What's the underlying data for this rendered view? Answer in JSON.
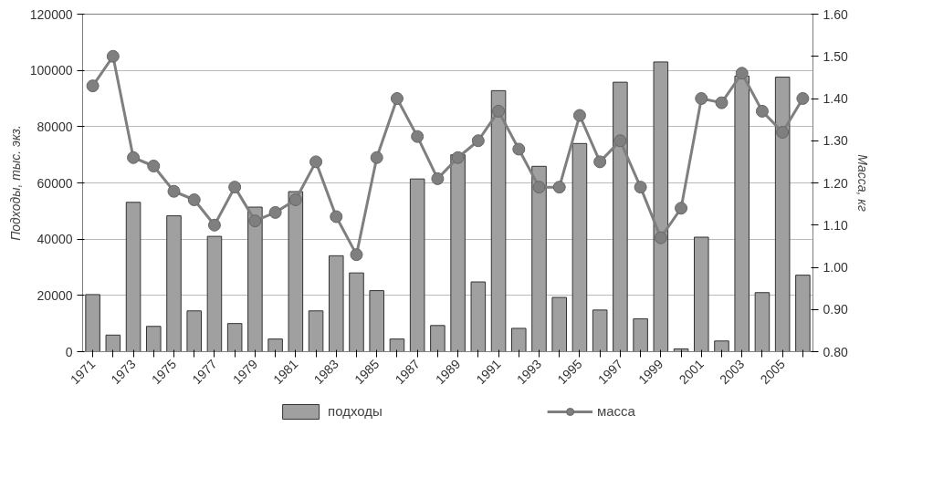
{
  "chart_data": {
    "type": "bar",
    "ylabel": "Подходы, тыс. экз.",
    "y2label": "Масса, кг",
    "categories": [
      "1971",
      null,
      "1973",
      null,
      "1975",
      null,
      "1977",
      null,
      "1979",
      null,
      "1981",
      null,
      "1983",
      null,
      "1985",
      null,
      "1987",
      null,
      "1989",
      null,
      "1991",
      null,
      "1993",
      null,
      "1995",
      null,
      "1997",
      null,
      "1999",
      null,
      "2001",
      null,
      "2003",
      null,
      "2005",
      null
    ],
    "series": [
      {
        "name": "подходы",
        "color": "#a0a0a0",
        "values": [
          20300,
          5900,
          53100,
          9000,
          48300,
          14500,
          41000,
          10000,
          51400,
          4500,
          56900,
          14500,
          34100,
          28000,
          21700,
          4500,
          61400,
          9300,
          70000,
          24800,
          92800,
          8300,
          65900,
          19300,
          74000,
          14800,
          95800,
          11700,
          103000,
          1000,
          40700,
          3800,
          98000,
          21000,
          97600,
          27200
        ]
      },
      {
        "name": "масса",
        "type": "line",
        "axis": "y2",
        "color": "#7f7f7f",
        "values": [
          1.43,
          1.5,
          1.26,
          1.24,
          1.18,
          1.16,
          1.1,
          1.19,
          1.11,
          1.13,
          1.16,
          1.25,
          1.12,
          1.03,
          1.26,
          1.4,
          1.31,
          1.21,
          1.26,
          1.3,
          1.37,
          1.28,
          1.19,
          1.19,
          1.36,
          1.25,
          1.3,
          1.19,
          1.07,
          1.14,
          1.4,
          1.39,
          1.46,
          1.37,
          1.32,
          1.4
        ]
      }
    ],
    "ylim": [
      0,
      120000
    ],
    "yticks": [
      0,
      20000,
      40000,
      60000,
      80000,
      100000,
      120000
    ],
    "y2lim": [
      0.8,
      1.6
    ],
    "y2ticks": [
      {
        "value": 0.8,
        "label": "0.80"
      },
      {
        "value": 0.9,
        "label": "0.90"
      },
      {
        "value": 1.0,
        "label": "1.00"
      },
      {
        "value": 1.1,
        "label": "1.10"
      },
      {
        "value": 1.2,
        "label": "1.20"
      },
      {
        "value": 1.3,
        "label": "1.30"
      },
      {
        "value": 1.4,
        "label": "1.40"
      },
      {
        "value": 1.5,
        "label": "1.50"
      },
      {
        "value": 1.6,
        "label": "1.60"
      }
    ],
    "grid": "y",
    "legend": "bottom",
    "marker": "circle",
    "line_style": "solid"
  }
}
